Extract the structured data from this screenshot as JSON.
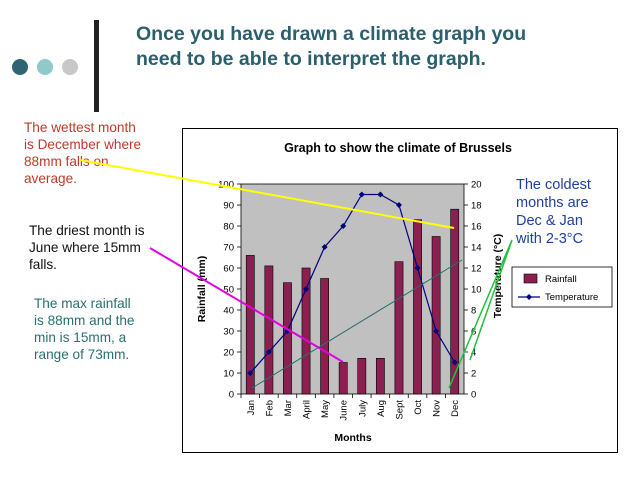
{
  "slide": {
    "title_line1": "Once you have drawn a climate graph you",
    "title_line2": "need to be able to interpret the graph."
  },
  "notes": {
    "wettest": [
      "The wettest month",
      "is December where",
      "88mm falls on",
      "average."
    ],
    "driest": [
      "The driest month is",
      "June where 15mm",
      "falls."
    ],
    "range": [
      "The max rainfall",
      "is 88mm and the",
      "min is 15mm, a",
      "range of 73mm."
    ],
    "coldest": [
      "The coldest",
      "months are",
      "Dec & Jan",
      "with 2-3°C"
    ]
  },
  "colors": {
    "dot1": "#2f6470",
    "dot2": "#8fc9c9",
    "dot3": "#c8c8c8",
    "wettest": "#c0392b",
    "driest": "#111111",
    "range": "#2a6f6f",
    "coldest": "#1f3fa0",
    "bar": "#8b2050",
    "line": "#000080",
    "plot_bg": "#c0c0c0"
  },
  "chart_data": {
    "type": "bar",
    "title": "Graph to show the climate of Brussels",
    "xlabel": "Months",
    "ylabel": "Rainfall (mm)",
    "y2label": "Temperature (°C)",
    "categories": [
      "Jan",
      "Feb",
      "Mar",
      "April",
      "May",
      "June",
      "July",
      "Aug",
      "Sept",
      "Oct",
      "Nov",
      "Dec"
    ],
    "ylim": [
      0,
      100
    ],
    "yticks": [
      0,
      10,
      20,
      30,
      40,
      50,
      60,
      70,
      80,
      90,
      100
    ],
    "y2lim": [
      0,
      20
    ],
    "y2ticks": [
      0,
      2,
      4,
      6,
      8,
      10,
      12,
      14,
      16,
      18,
      20
    ],
    "series": [
      {
        "name": "Rainfall",
        "type": "bar",
        "axis": "left",
        "values": [
          66,
          61,
          53,
          60,
          55,
          15,
          17,
          17,
          63,
          83,
          75,
          88
        ]
      },
      {
        "name": "Temperature",
        "type": "line",
        "axis": "right",
        "values": [
          2,
          4,
          6,
          10,
          14,
          16,
          19,
          19,
          18,
          12,
          6,
          3
        ]
      }
    ],
    "legend_position": "right",
    "grid": false
  }
}
